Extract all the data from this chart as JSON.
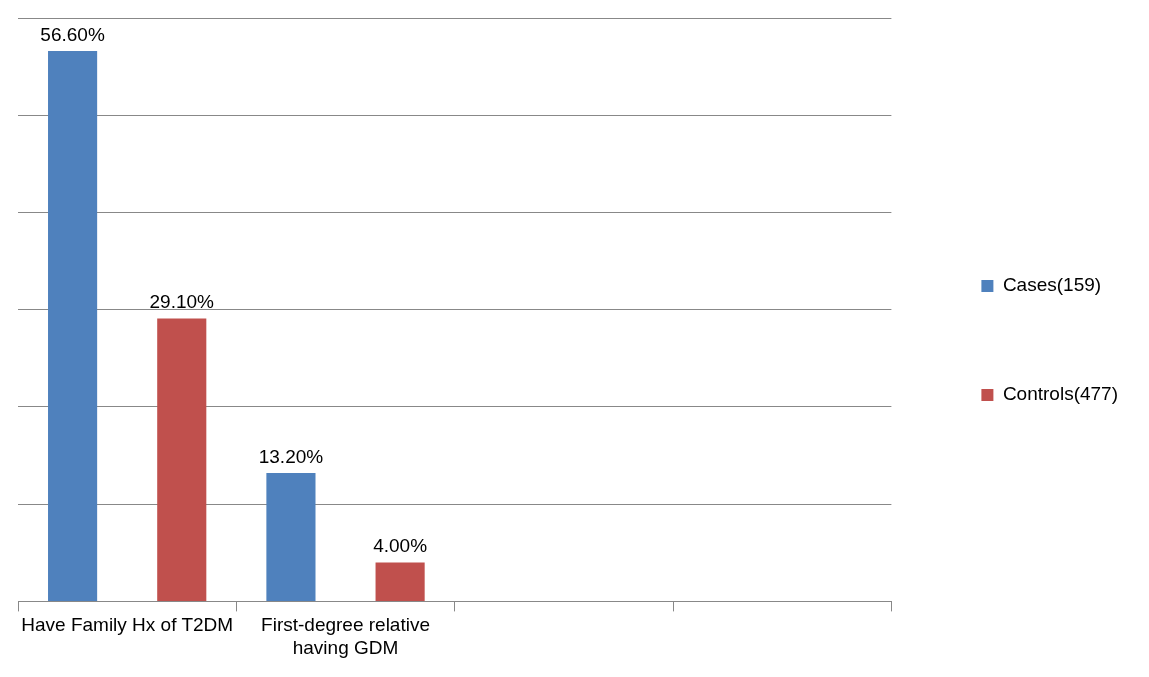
{
  "chart_data": {
    "type": "bar",
    "categories": [
      "Have Family Hx of T2DM",
      "First-degree relative having GDM",
      null,
      null
    ],
    "series": [
      {
        "name": "Cases(159)",
        "color": "#4f81bd",
        "values": [
          56.6,
          13.2,
          null,
          null
        ],
        "value_labels": [
          "56.60%",
          "13.20%",
          null,
          null
        ]
      },
      {
        "name": "Controls(477)",
        "color": "#c0504d",
        "values": [
          29.1,
          4.0,
          null,
          null
        ],
        "value_labels": [
          "29.10%",
          "4.00%",
          null,
          null
        ]
      }
    ],
    "ylim": [
      0,
      60
    ],
    "yticks": [
      0,
      10,
      20,
      30,
      40,
      50,
      60
    ],
    "tick_labels": "x",
    "grid": "y",
    "legend": "right"
  }
}
